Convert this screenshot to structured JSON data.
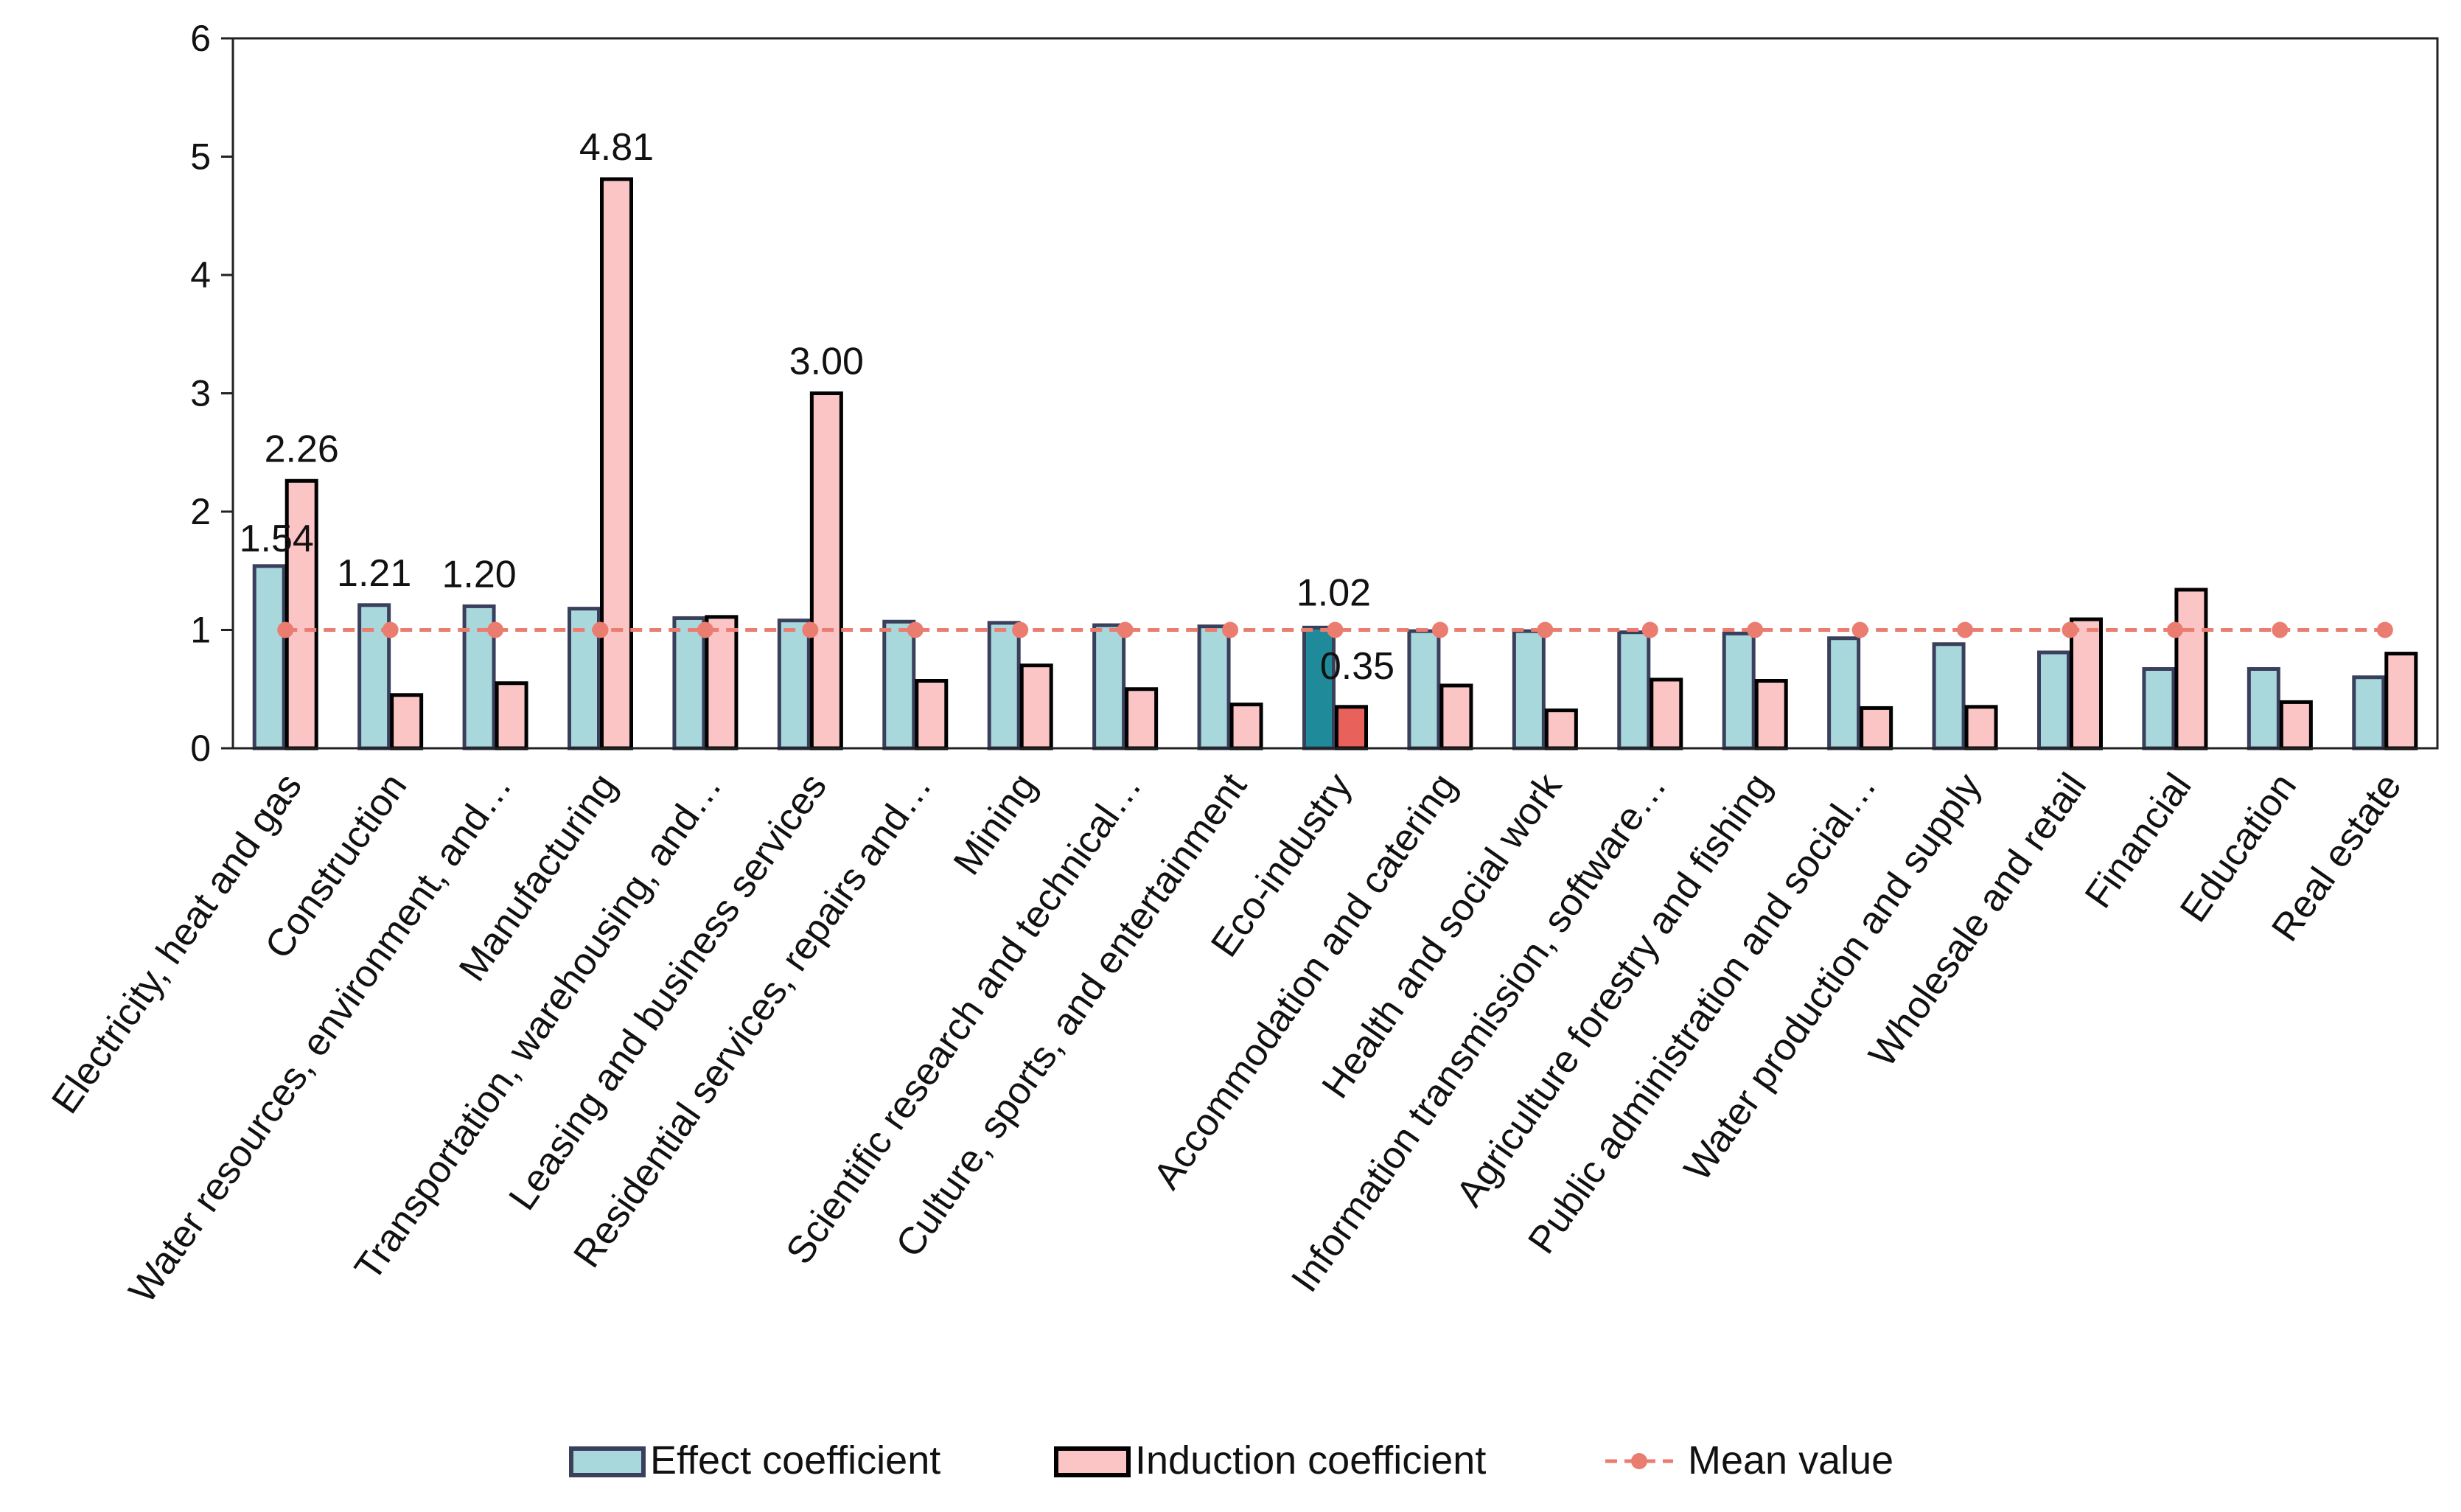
{
  "chart_data": {
    "type": "bar",
    "title": "",
    "xlabel": "",
    "ylabel": "",
    "ylim": [
      0,
      6
    ],
    "yticks": [
      0,
      1,
      2,
      3,
      4,
      5,
      6
    ],
    "grid": false,
    "categories": [
      "Electricity, heat and gas",
      "Construction",
      "Water resources, environment, and…",
      "Manufacturing",
      "Transportation, warehousing, and…",
      "Leasing and business services",
      "Residential services, repairs and…",
      "Mining",
      "Scientific research and technical…",
      "Culture, sports, and entertainment",
      "Eco-industry",
      "Accommodation and catering",
      "Health and social work",
      "Information transmission, software…",
      "Agriculture forestry and fishing",
      "Public administration and social…",
      "Water production and supply",
      "Wholesale and retail",
      "Financial",
      "Education",
      "Real estate"
    ],
    "series": [
      {
        "name": "Effect coefficient",
        "kind": "bar",
        "color": "#a9d8dc",
        "highlight_color": "#1f8a9a",
        "values": [
          1.54,
          1.21,
          1.2,
          1.18,
          1.1,
          1.08,
          1.07,
          1.06,
          1.04,
          1.03,
          1.02,
          0.99,
          0.99,
          0.98,
          0.97,
          0.93,
          0.88,
          0.81,
          0.67,
          0.67,
          0.6
        ]
      },
      {
        "name": "Induction coefficient",
        "kind": "bar",
        "color": "#fbc5c5",
        "highlight_color": "#e8625b",
        "values": [
          2.26,
          0.45,
          0.55,
          4.81,
          1.11,
          3.0,
          0.57,
          0.7,
          0.5,
          0.37,
          0.35,
          0.53,
          0.32,
          0.58,
          0.57,
          0.34,
          0.35,
          1.09,
          1.34,
          0.39,
          0.8
        ]
      },
      {
        "name": "Mean value",
        "kind": "line",
        "color": "#ea7c70",
        "values": [
          1,
          1,
          1,
          1,
          1,
          1,
          1,
          1,
          1,
          1,
          1,
          1,
          1,
          1,
          1,
          1,
          1,
          1,
          1,
          1,
          1
        ]
      }
    ],
    "highlight_category": "Eco-industry",
    "annotations": [
      {
        "series": "Effect coefficient",
        "category": "Electricity, heat and gas",
        "text": "1.54"
      },
      {
        "series": "Induction coefficient",
        "category": "Electricity, heat and gas",
        "text": "2.26"
      },
      {
        "series": "Effect coefficient",
        "category": "Construction",
        "text": "1.21"
      },
      {
        "series": "Effect coefficient",
        "category": "Water resources, environment, and…",
        "text": "1.20"
      },
      {
        "series": "Induction coefficient",
        "category": "Manufacturing",
        "text": "4.81"
      },
      {
        "series": "Induction coefficient",
        "category": "Leasing and business services",
        "text": "3.00"
      },
      {
        "series": "Effect coefficient",
        "category": "Eco-industry",
        "text": "1.02"
      },
      {
        "series": "Induction coefficient",
        "category": "Eco-industry",
        "text": "0.35"
      }
    ],
    "legend": {
      "placement": "bottom",
      "items": [
        "Effect coefficient",
        "Induction coefficient",
        "Mean value"
      ]
    }
  }
}
